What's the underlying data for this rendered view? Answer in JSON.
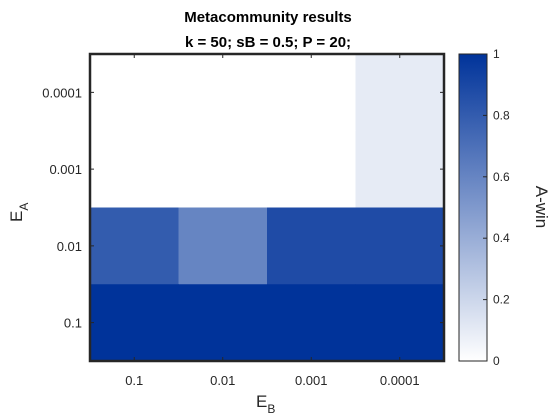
{
  "chart_data": {
    "type": "heatmap",
    "title": "Metacommunity results",
    "subtitle": "k = 50;  sB = 0.5;  P = 20;",
    "xlabel": {
      "main": "E",
      "sub": "B"
    },
    "ylabel": {
      "main": "E",
      "sub": "A"
    },
    "x_categories": [
      "0.1",
      "0.01",
      "0.001",
      "0.0001"
    ],
    "y_categories": [
      "0.0001",
      "0.001",
      "0.01",
      "0.1"
    ],
    "values": [
      [
        0.0,
        0.0,
        0.0,
        0.1
      ],
      [
        0.0,
        0.0,
        0.0,
        0.1
      ],
      [
        0.8,
        0.6,
        0.88,
        0.88
      ],
      [
        1.0,
        1.0,
        1.0,
        1.0
      ]
    ],
    "colorbar": {
      "label": "A-win",
      "range": [
        0,
        1
      ],
      "ticks": [
        "0",
        "0.2",
        "0.4",
        "0.6",
        "0.8",
        "1"
      ],
      "color_low": "#ffffff",
      "color_high": "#00339a"
    }
  }
}
